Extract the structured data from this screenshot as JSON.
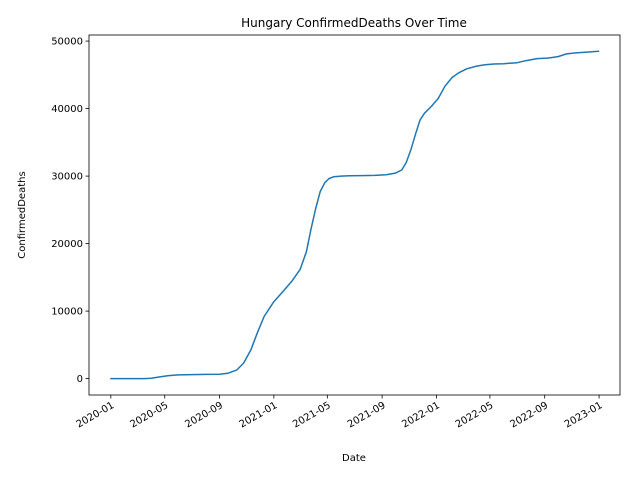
{
  "chart_data": {
    "type": "line",
    "title": "Hungary  ConfirmedDeaths Over Time",
    "xlabel": "Date",
    "ylabel": "ConfirmedDeaths",
    "x_range": [
      "2019-11-13",
      "2023-02-17"
    ],
    "ylim": [
      -2425,
      50900
    ],
    "grid": false,
    "legend": "none",
    "x_ticks": [
      "2020-01",
      "2020-05",
      "2020-09",
      "2021-01",
      "2021-05",
      "2021-09",
      "2022-01",
      "2022-05",
      "2022-09",
      "2023-01"
    ],
    "x_tick_dates": [
      "2020-01-01",
      "2020-05-01",
      "2020-09-01",
      "2021-01-01",
      "2021-05-01",
      "2021-09-01",
      "2022-01-01",
      "2022-05-01",
      "2022-09-01",
      "2023-01-01"
    ],
    "y_ticks": [
      0,
      10000,
      20000,
      30000,
      40000,
      50000
    ],
    "y_tick_labels": [
      "0",
      "10000",
      "20000",
      "30000",
      "40000",
      "50000"
    ],
    "series": [
      {
        "color": "#1f77b4",
        "x": [
          "2020-01-01",
          "2020-03-15",
          "2020-04-01",
          "2020-04-20",
          "2020-05-10",
          "2020-06-01",
          "2020-07-01",
          "2020-08-01",
          "2020-09-01",
          "2020-09-20",
          "2020-10-10",
          "2020-10-25",
          "2020-11-10",
          "2020-11-25",
          "2020-12-10",
          "2020-12-31",
          "2021-01-20",
          "2021-02-10",
          "2021-03-01",
          "2021-03-15",
          "2021-03-25",
          "2021-04-05",
          "2021-04-15",
          "2021-04-25",
          "2021-05-05",
          "2021-05-15",
          "2021-06-01",
          "2021-06-20",
          "2021-07-15",
          "2021-08-15",
          "2021-09-10",
          "2021-10-01",
          "2021-10-15",
          "2021-10-25",
          "2021-11-05",
          "2021-11-15",
          "2021-11-25",
          "2021-12-05",
          "2021-12-20",
          "2022-01-05",
          "2022-01-20",
          "2022-02-05",
          "2022-02-20",
          "2022-03-10",
          "2022-04-01",
          "2022-04-20",
          "2022-05-10",
          "2022-06-01",
          "2022-07-01",
          "2022-07-20",
          "2022-08-15",
          "2022-09-10",
          "2022-10-01",
          "2022-10-20",
          "2022-11-10",
          "2022-12-01",
          "2022-12-31"
        ],
        "y": [
          0,
          0,
          50,
          250,
          450,
          550,
          600,
          620,
          650,
          800,
          1300,
          2300,
          4200,
          6800,
          9200,
          11300,
          12800,
          14400,
          16200,
          18800,
          22000,
          25200,
          27700,
          29000,
          29650,
          29900,
          30000,
          30050,
          30080,
          30100,
          30200,
          30450,
          30900,
          32000,
          34000,
          36200,
          38300,
          39300,
          40300,
          41500,
          43300,
          44600,
          45300,
          45900,
          46300,
          46500,
          46600,
          46650,
          46800,
          47100,
          47400,
          47500,
          47700,
          48100,
          48250,
          48350,
          48500
        ]
      }
    ]
  }
}
